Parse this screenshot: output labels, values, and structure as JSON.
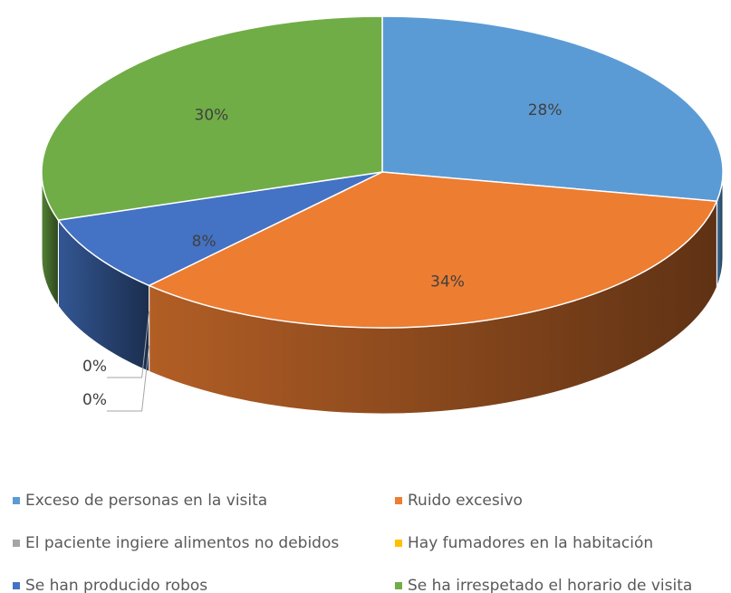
{
  "chart_data": {
    "type": "pie",
    "categories": [
      "Exceso de personas en la visita",
      "Ruido excesivo",
      "El paciente ingiere alimentos no debidos",
      "Hay fumadores en la habitación",
      "Se han producido robos",
      "Se ha irrespetado el horario de visita"
    ],
    "values": [
      28,
      34,
      0,
      0,
      8,
      30
    ],
    "value_labels": [
      "28%",
      "34%",
      "0%",
      "0%",
      "8%",
      "30%"
    ],
    "colors": [
      "#5b9bd5",
      "#ed7d31",
      "#a5a5a5",
      "#ffc000",
      "#4472c4",
      "#70ad47"
    ]
  }
}
